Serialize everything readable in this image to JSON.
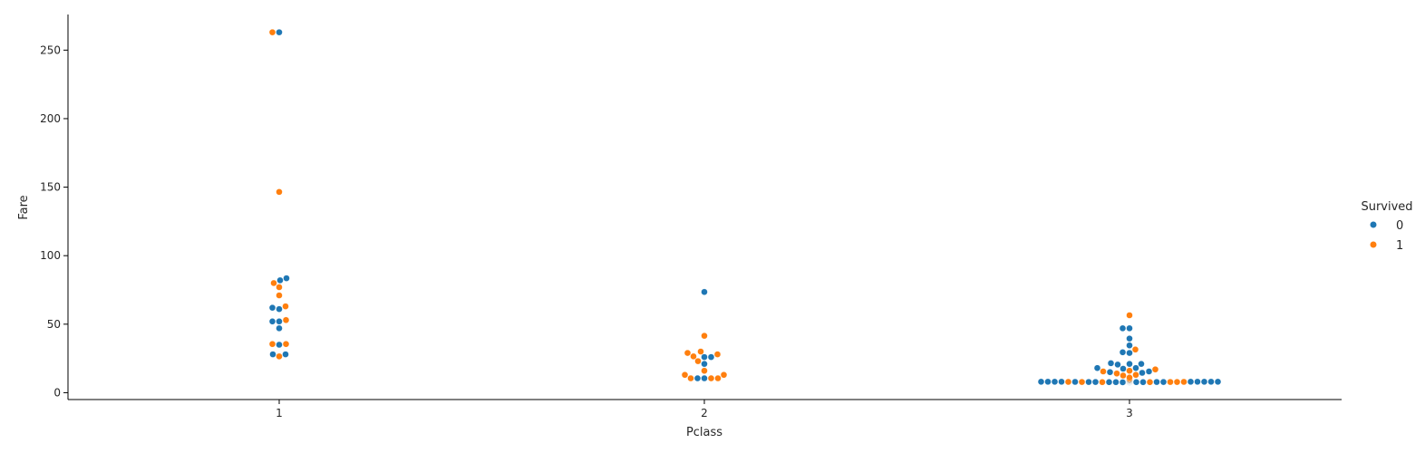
{
  "chart_data": {
    "type": "scatter",
    "subtype": "swarm",
    "title": "",
    "xlabel": "Pclass",
    "ylabel": "Fare",
    "categories": [
      "1",
      "2",
      "3"
    ],
    "ylim": [
      -5,
      276
    ],
    "y_ticks": [
      0,
      50,
      100,
      150,
      200,
      250
    ],
    "legend": {
      "title": "Survived",
      "placement": "right",
      "entries": [
        {
          "label": "0",
          "color": "#1f77b4"
        },
        {
          "label": "1",
          "color": "#ff7f0e"
        }
      ]
    },
    "series": [
      {
        "name": "0",
        "color": "#1f77b4",
        "groups": [
          {
            "category": "1",
            "fares": [
              263,
              83.5,
              82,
              62,
              61,
              52,
              52,
              47,
              35,
              28,
              28
            ]
          },
          {
            "category": "2",
            "fares": [
              73.5,
              26,
              26,
              21,
              10.5,
              10.5
            ]
          },
          {
            "category": "3",
            "fares": [
              47,
              47,
              39.5,
              34.5,
              29.5,
              29,
              21.5,
              21,
              21,
              20.5,
              18,
              18,
              17.5,
              15.5,
              15,
              14.5,
              9.5,
              9,
              8.5,
              8.5,
              8,
              8,
              8,
              8,
              8,
              8,
              8,
              8,
              8,
              8,
              7.9,
              7.8,
              7.8,
              7.7,
              7.7,
              7.7,
              7.6,
              7.6,
              7.7,
              7.8,
              7.8,
              8,
              8,
              8,
              8,
              8,
              8.1,
              8.1,
              8.2,
              8.4,
              8.5,
              8.7,
              9,
              9.5
            ]
          }
        ]
      },
      {
        "name": "1",
        "color": "#ff7f0e",
        "groups": [
          {
            "category": "1",
            "fares": [
              263,
              146.5,
              80,
              77,
              71,
              63,
              53,
              35.5,
              35.5,
              26.5
            ]
          },
          {
            "category": "2",
            "fares": [
              41.5,
              30,
              29,
              28,
              26.5,
              23,
              16,
              13,
              13,
              10.5,
              10.5,
              10.5
            ]
          },
          {
            "category": "3",
            "fares": [
              56.5,
              31.5,
              17,
              16,
              15.5,
              14,
              13,
              12.5,
              11,
              11,
              10,
              9,
              8,
              8,
              8,
              8,
              7.9,
              7.8,
              7.7,
              7.7,
              7.8,
              7.8,
              7.9,
              8,
              8,
              8
            ]
          }
        ]
      }
    ]
  }
}
